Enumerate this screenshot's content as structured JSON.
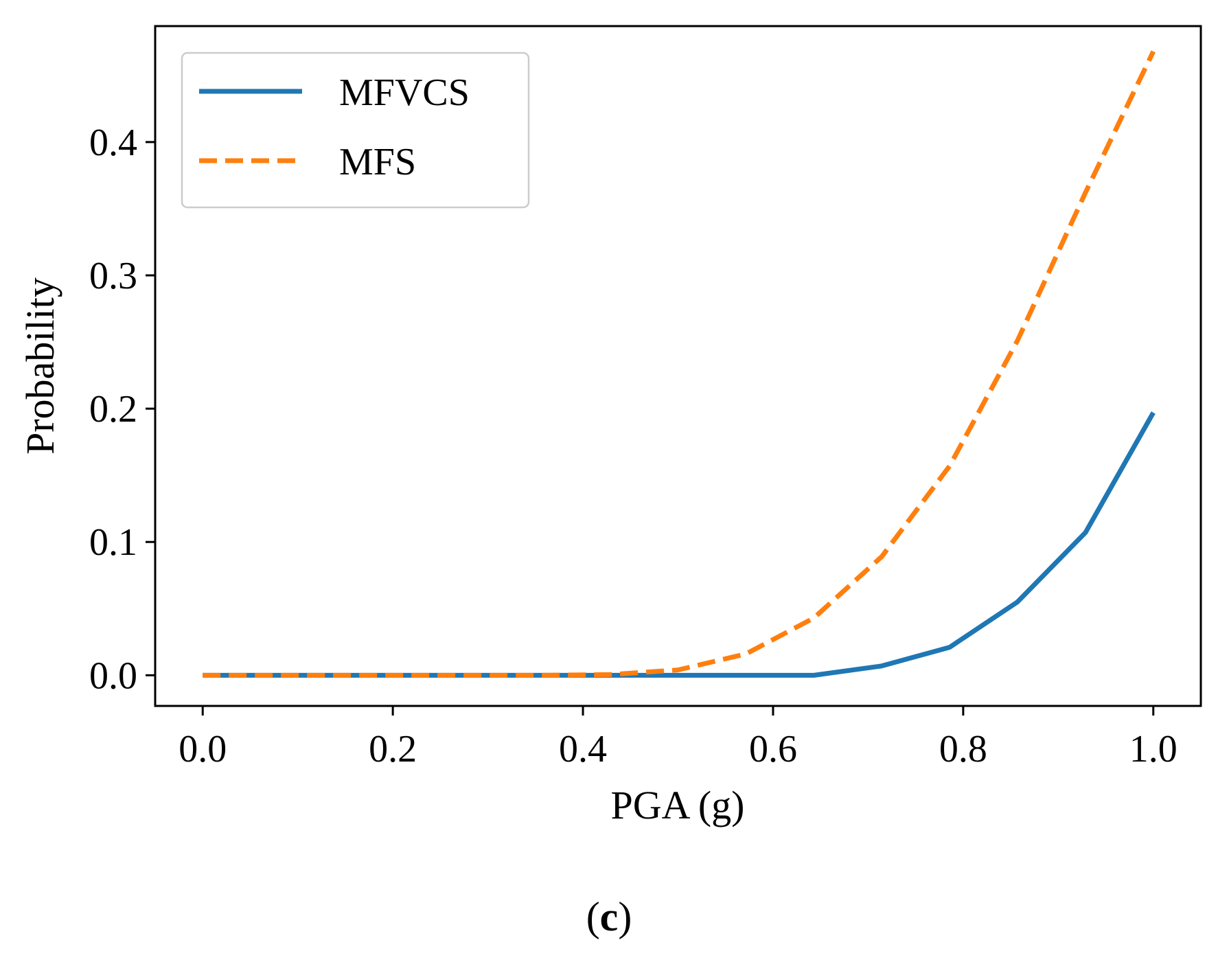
{
  "chart_data": {
    "type": "line",
    "title": "",
    "xlabel": "PGA (g)",
    "ylabel": "Probability",
    "xlim": [
      -0.05,
      1.05
    ],
    "ylim": [
      -0.023,
      0.487
    ],
    "x_ticks": [
      0.0,
      0.2,
      0.4,
      0.6,
      0.8,
      1.0
    ],
    "x_tick_labels": [
      "0.0",
      "0.2",
      "0.4",
      "0.6",
      "0.8",
      "1.0"
    ],
    "y_ticks": [
      0.0,
      0.1,
      0.2,
      0.3,
      0.4
    ],
    "y_tick_labels": [
      "0.0",
      "0.1",
      "0.2",
      "0.3",
      "0.4"
    ],
    "grid": false,
    "legend_position": "top-left",
    "series": [
      {
        "name": "MFVCS",
        "color": "#1f77b4",
        "style": "solid",
        "x": [
          0.0,
          0.0714,
          0.1429,
          0.2143,
          0.2857,
          0.3571,
          0.4286,
          0.5,
          0.5714,
          0.6429,
          0.7143,
          0.7857,
          0.8571,
          0.9286,
          1.0
        ],
        "y": [
          0.0,
          0.0,
          0.0,
          0.0,
          0.0,
          0.0,
          0.0,
          0.0,
          0.0,
          0.0,
          0.007,
          0.021,
          0.055,
          0.107,
          0.197
        ]
      },
      {
        "name": "MFS",
        "color": "#ff7f0e",
        "style": "dashed",
        "x": [
          0.0,
          0.0714,
          0.1429,
          0.2143,
          0.2857,
          0.3571,
          0.4286,
          0.5,
          0.5714,
          0.6429,
          0.7143,
          0.7857,
          0.8571,
          0.9286,
          1.0
        ],
        "y": [
          0.0,
          0.0,
          0.0,
          0.0,
          0.0,
          0.0,
          0.0005,
          0.004,
          0.016,
          0.043,
          0.089,
          0.157,
          0.251,
          0.362,
          0.468
        ]
      }
    ]
  },
  "caption": {
    "open": "(",
    "letter": "c",
    "close": ")"
  }
}
